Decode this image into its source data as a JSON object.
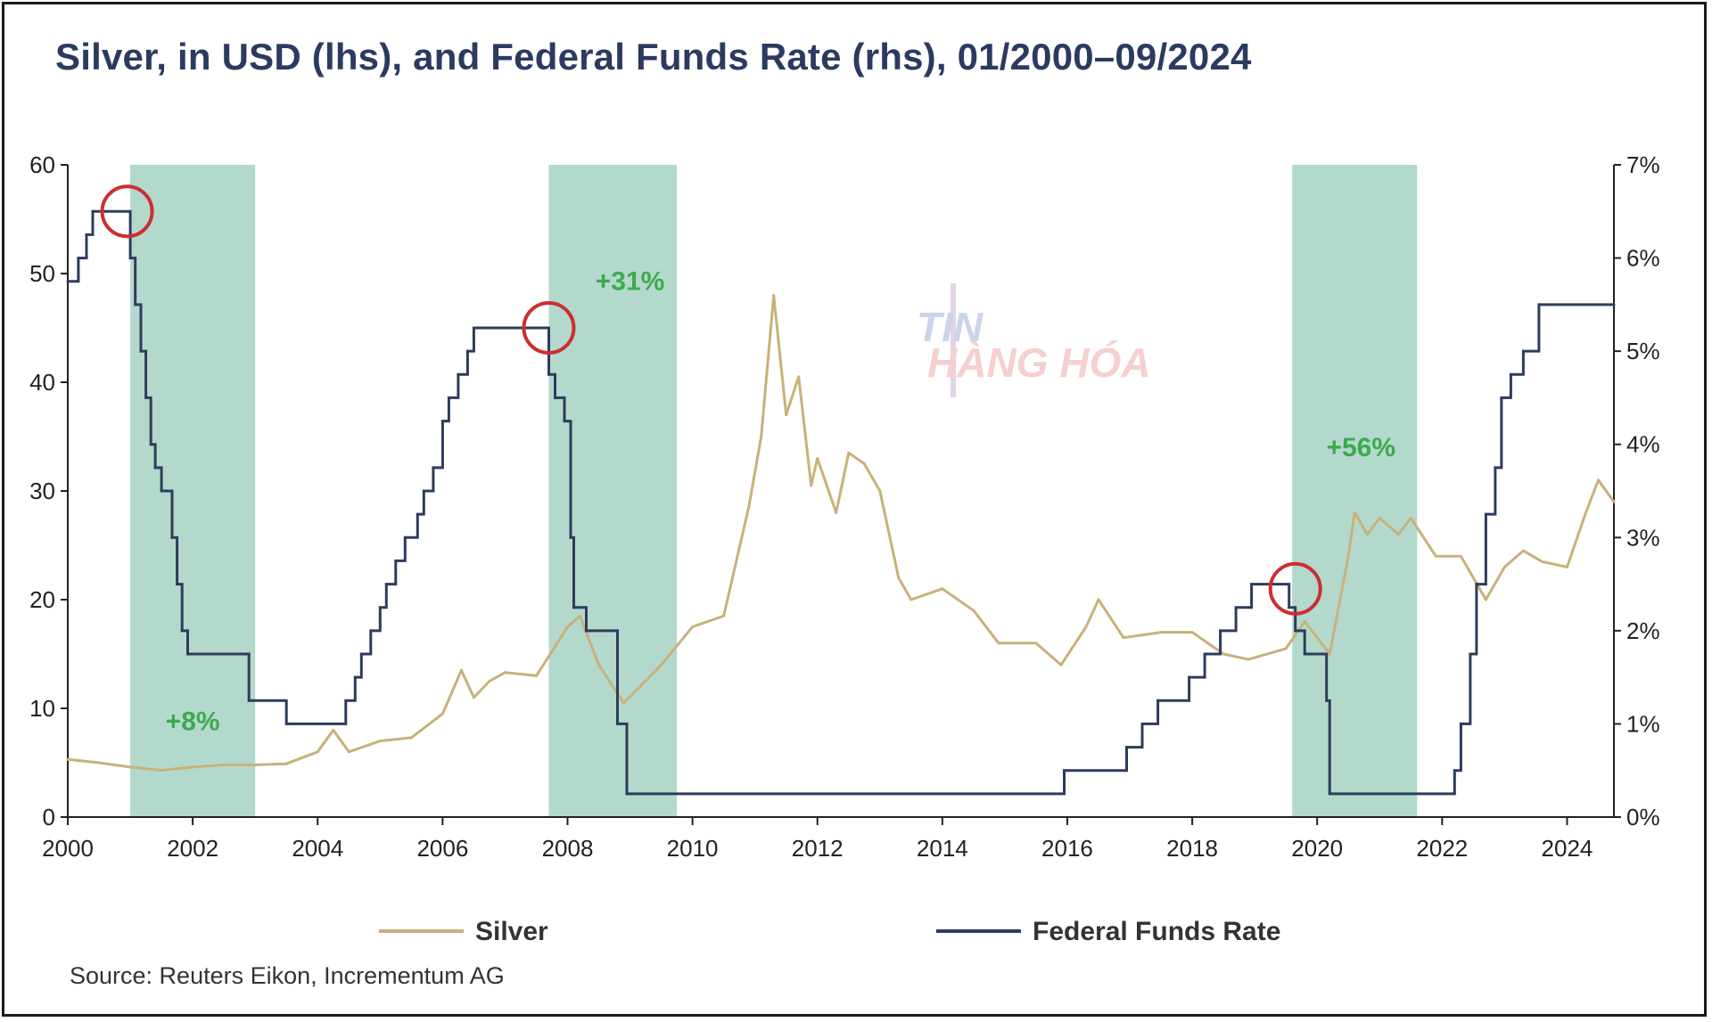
{
  "page": {
    "title": "Silver, in USD (lhs), and Federal Funds Rate (rhs), 01/2000–09/2024",
    "source": "Source: Reuters Eikon, Incrementum AG",
    "watermark": {
      "line1": "TIN",
      "line2": "HÀNG HÓA"
    }
  },
  "chart_data": {
    "type": "line",
    "title": "Silver, in USD (lhs), and Federal Funds Rate (rhs), 01/2000–09/2024",
    "xlabel": "",
    "ylabel_left": "",
    "ylabel_right": "",
    "xlim": [
      2000,
      2024.75
    ],
    "ylim_left": [
      0,
      60
    ],
    "ylim_right": [
      0,
      7
    ],
    "x_ticks": [
      2000,
      2002,
      2004,
      2006,
      2008,
      2010,
      2012,
      2014,
      2016,
      2018,
      2020,
      2022,
      2024
    ],
    "x_tick_labels": [
      "2000",
      "2002",
      "2004",
      "2006",
      "2008",
      "2010",
      "2012",
      "2014",
      "2016",
      "2018",
      "2020",
      "2022",
      "2024"
    ],
    "y_left_ticks": [
      0,
      10,
      20,
      30,
      40,
      50,
      60
    ],
    "y_left_tick_labels": [
      "0",
      "10",
      "20",
      "30",
      "40",
      "50",
      "60"
    ],
    "y_right_ticks": [
      0,
      1,
      2,
      3,
      4,
      5,
      6,
      7
    ],
    "y_right_tick_labels": [
      "0%",
      "1%",
      "2%",
      "3%",
      "4%",
      "5%",
      "6%",
      "7%"
    ],
    "legend": {
      "position": "bottom",
      "items": [
        {
          "name": "Silver",
          "color": "#c8b27a"
        },
        {
          "name": "Federal Funds Rate",
          "color": "#2e3c5c"
        }
      ]
    },
    "colors": {
      "silver": "#c8b27a",
      "fed": "#2e3c5c",
      "shade": "#b3d9cc",
      "circle": "#cc2e2e",
      "annotation": "#3daa4e",
      "axis": "#222222"
    },
    "shaded_periods": [
      {
        "start": 2001.0,
        "end": 2003.0
      },
      {
        "start": 2007.7,
        "end": 2009.75
      },
      {
        "start": 2019.6,
        "end": 2021.6
      }
    ],
    "annotations": [
      {
        "text": "+8%",
        "x": 2002.0,
        "y_left": 8
      },
      {
        "text": "+31%",
        "x": 2009.0,
        "y_left": 48.5
      },
      {
        "text": "+56%",
        "x": 2020.7,
        "y_left": 33.2
      }
    ],
    "circles": [
      {
        "x": 2000.95,
        "y_right": 6.5
      },
      {
        "x": 2007.7,
        "y_right": 5.25
      },
      {
        "x": 2019.65,
        "y_right": 2.45
      }
    ],
    "series": [
      {
        "name": "Federal Funds Rate",
        "axis": "right",
        "style": "step",
        "x": [
          2000.0,
          2000.17,
          2000.3,
          2000.4,
          2001.0,
          2001.08,
          2001.17,
          2001.25,
          2001.33,
          2001.4,
          2001.5,
          2001.67,
          2001.75,
          2001.83,
          2001.92,
          2002.9,
          2003.5,
          2004.45,
          2004.6,
          2004.7,
          2004.85,
          2005.0,
          2005.1,
          2005.25,
          2005.4,
          2005.6,
          2005.7,
          2005.85,
          2006.0,
          2006.1,
          2006.25,
          2006.4,
          2006.5,
          2007.7,
          2007.8,
          2007.95,
          2008.05,
          2008.1,
          2008.3,
          2008.8,
          2008.95,
          2015.95,
          2016.95,
          2017.2,
          2017.45,
          2017.95,
          2018.2,
          2018.45,
          2018.7,
          2018.95,
          2019.55,
          2019.65,
          2019.8,
          2020.15,
          2020.2,
          2022.2,
          2022.3,
          2022.45,
          2022.55,
          2022.7,
          2022.85,
          2022.95,
          2023.1,
          2023.3,
          2023.55,
          2024.7,
          2024.75
        ],
        "y": [
          5.75,
          6.0,
          6.25,
          6.5,
          6.0,
          5.5,
          5.0,
          4.5,
          4.0,
          3.75,
          3.5,
          3.0,
          2.5,
          2.0,
          1.75,
          1.25,
          1.0,
          1.25,
          1.5,
          1.75,
          2.0,
          2.25,
          2.5,
          2.75,
          3.0,
          3.25,
          3.5,
          3.75,
          4.25,
          4.5,
          4.75,
          5.0,
          5.25,
          4.75,
          4.5,
          4.25,
          3.0,
          2.25,
          2.0,
          1.0,
          0.25,
          0.5,
          0.75,
          1.0,
          1.25,
          1.5,
          1.75,
          2.0,
          2.25,
          2.5,
          2.25,
          2.0,
          1.75,
          1.25,
          0.25,
          0.5,
          1.0,
          1.75,
          2.5,
          3.25,
          3.75,
          4.5,
          4.75,
          5.0,
          5.5,
          5.5,
          5.5
        ]
      },
      {
        "name": "Silver",
        "axis": "left",
        "style": "line",
        "x": [
          2000.0,
          2000.5,
          2001.0,
          2001.5,
          2002.0,
          2002.5,
          2003.0,
          2003.5,
          2004.0,
          2004.25,
          2004.5,
          2005.0,
          2005.5,
          2006.0,
          2006.3,
          2006.5,
          2006.75,
          2007.0,
          2007.5,
          2008.0,
          2008.2,
          2008.5,
          2008.9,
          2009.5,
          2010.0,
          2010.5,
          2010.9,
          2011.1,
          2011.3,
          2011.5,
          2011.7,
          2011.9,
          2012.0,
          2012.3,
          2012.5,
          2012.75,
          2013.0,
          2013.3,
          2013.5,
          2014.0,
          2014.5,
          2014.9,
          2015.5,
          2015.9,
          2016.3,
          2016.5,
          2016.9,
          2017.5,
          2018.0,
          2018.5,
          2018.9,
          2019.5,
          2019.8,
          2020.2,
          2020.5,
          2020.6,
          2020.8,
          2021.0,
          2021.3,
          2021.5,
          2021.9,
          2022.3,
          2022.7,
          2023.0,
          2023.3,
          2023.6,
          2024.0,
          2024.3,
          2024.5,
          2024.75
        ],
        "y": [
          5.3,
          5.0,
          4.6,
          4.3,
          4.6,
          4.8,
          4.8,
          4.9,
          6.0,
          8.0,
          6.0,
          7.0,
          7.3,
          9.5,
          13.5,
          11.0,
          12.5,
          13.3,
          13.0,
          17.5,
          18.5,
          14.0,
          10.5,
          14.0,
          17.5,
          18.5,
          28.5,
          35.0,
          48.0,
          37.0,
          40.5,
          30.5,
          33.0,
          28.0,
          33.5,
          32.5,
          30.0,
          22.0,
          20.0,
          21.0,
          19.0,
          16.0,
          16.0,
          14.0,
          17.5,
          20.0,
          16.5,
          17.0,
          17.0,
          15.0,
          14.5,
          15.5,
          18.0,
          15.0,
          24.0,
          28.0,
          26.0,
          27.5,
          26.0,
          27.5,
          24.0,
          24.0,
          20.0,
          23.0,
          24.5,
          23.5,
          23.0,
          28.0,
          31.0,
          29.0
        ]
      }
    ]
  }
}
